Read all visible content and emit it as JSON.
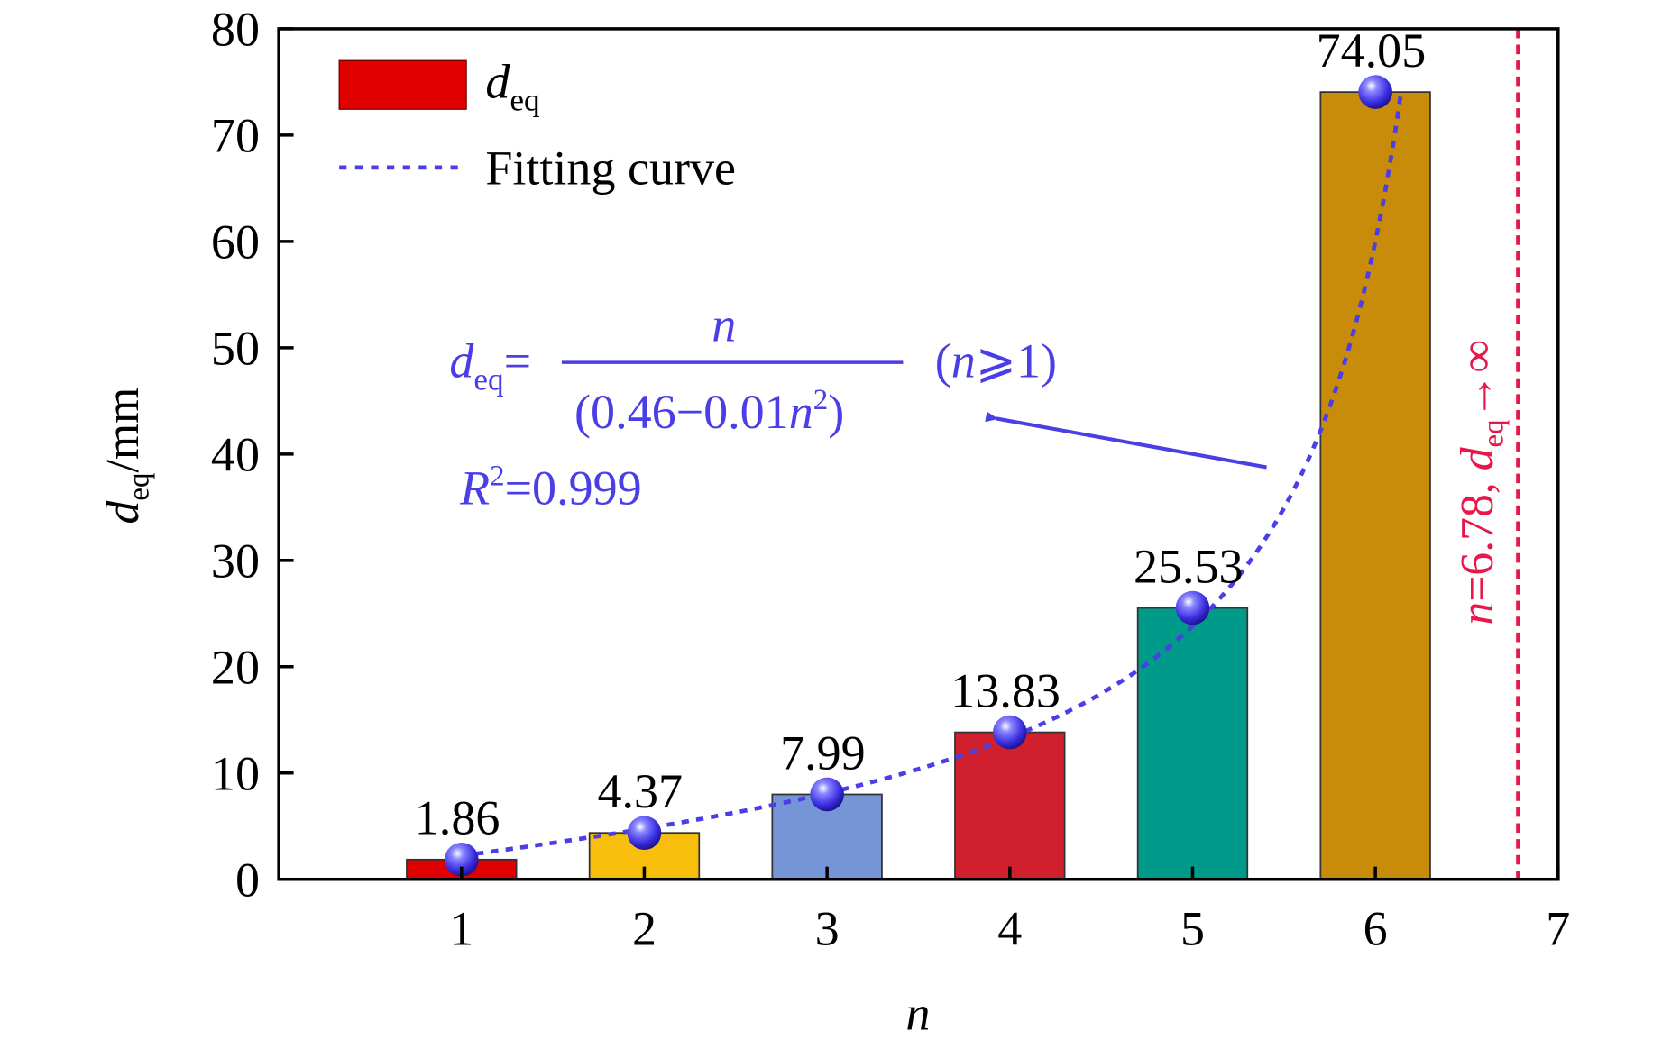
{
  "chart_data": {
    "type": "bar",
    "xlabel": "n",
    "ylabel_main": "d",
    "ylabel_sub": "eq",
    "ylabel_unit": "/mm",
    "xlim": [
      0,
      7
    ],
    "ylim": [
      0,
      80
    ],
    "xticks": [
      "1",
      "2",
      "3",
      "4",
      "5",
      "6",
      "7"
    ],
    "yticks": [
      "0",
      "10",
      "20",
      "30",
      "40",
      "50",
      "60",
      "70",
      "80"
    ],
    "categories": [
      1,
      2,
      3,
      4,
      5,
      6
    ],
    "values": [
      1.86,
      4.37,
      7.99,
      13.83,
      25.53,
      74.05
    ],
    "value_labels": [
      "1.86",
      "4.37",
      "7.99",
      "13.83",
      "25.53",
      "74.05"
    ],
    "bar_colors": [
      "#e00000",
      "#f7bf0b",
      "#7595d6",
      "#d0202e",
      "#009a8a",
      "#c98c0a"
    ],
    "grid": false,
    "legend": {
      "placement": "top-left",
      "entries": [
        {
          "label_main": "d",
          "label_sub": "eq",
          "kind": "bar",
          "color": "#e00000"
        },
        {
          "label": "Fitting curve",
          "kind": "dotted-line",
          "color": "#4a3ee6"
        }
      ]
    },
    "fit": {
      "color": "#4a3ee6",
      "lhs_main": "d",
      "lhs_sub": "eq",
      "equals": "=",
      "numerator": "n",
      "denominator_a": "(0.46−0.01",
      "denominator_n": "n",
      "denominator_sup": "2",
      "denominator_close": ")",
      "condition_open": "(",
      "condition_n": "n",
      "condition_rest": "⩾1)",
      "r2_main": "R",
      "r2_sup": "2",
      "r2_value": "=0.999",
      "a": 0.46,
      "b": 0.01
    },
    "asymptote": {
      "x": 6.78,
      "color": "#e8174a",
      "label_n": "n",
      "label_value": "=6.78, ",
      "label_d": "d",
      "label_sub": "eq",
      "label_arrow": "→∞"
    }
  }
}
